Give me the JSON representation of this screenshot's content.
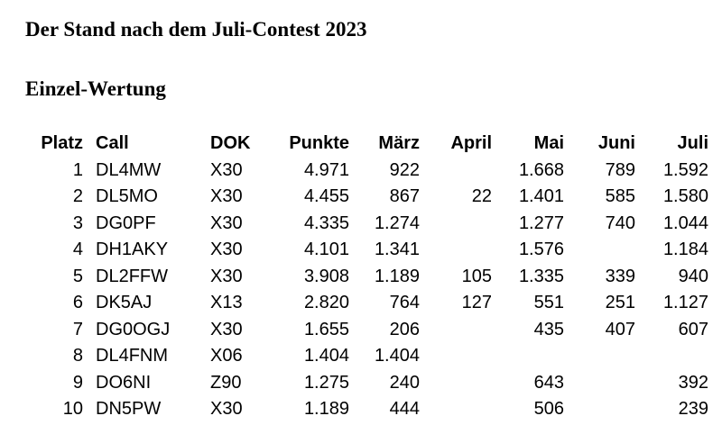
{
  "title": "Der Stand nach dem Juli-Contest 2023",
  "subtitle": "Einzel-Wertung",
  "columns": {
    "platz": "Platz",
    "call": "Call",
    "dok": "DOK",
    "punkte": "Punkte",
    "maerz": "März",
    "april": "April",
    "mai": "Mai",
    "juni": "Juni",
    "juli": "Juli"
  },
  "rows": [
    {
      "platz": "1",
      "call": "DL4MW",
      "dok": "X30",
      "punkte": "4.971",
      "maerz": "922",
      "april": "",
      "mai": "1.668",
      "juni": "789",
      "juli": "1.592"
    },
    {
      "platz": "2",
      "call": "DL5MO",
      "dok": "X30",
      "punkte": "4.455",
      "maerz": "867",
      "april": "22",
      "mai": "1.401",
      "juni": "585",
      "juli": "1.580"
    },
    {
      "platz": "3",
      "call": "DG0PF",
      "dok": "X30",
      "punkte": "4.335",
      "maerz": "1.274",
      "april": "",
      "mai": "1.277",
      "juni": "740",
      "juli": "1.044"
    },
    {
      "platz": "4",
      "call": "DH1AKY",
      "dok": "X30",
      "punkte": "4.101",
      "maerz": "1.341",
      "april": "",
      "mai": "1.576",
      "juni": "",
      "juli": "1.184"
    },
    {
      "platz": "5",
      "call": "DL2FFW",
      "dok": "X30",
      "punkte": "3.908",
      "maerz": "1.189",
      "april": "105",
      "mai": "1.335",
      "juni": "339",
      "juli": "940"
    },
    {
      "platz": "6",
      "call": "DK5AJ",
      "dok": "X13",
      "punkte": "2.820",
      "maerz": "764",
      "april": "127",
      "mai": "551",
      "juni": "251",
      "juli": "1.127"
    },
    {
      "platz": "7",
      "call": "DG0OGJ",
      "dok": "X30",
      "punkte": "1.655",
      "maerz": "206",
      "april": "",
      "mai": "435",
      "juni": "407",
      "juli": "607"
    },
    {
      "platz": "8",
      "call": "DL4FNM",
      "dok": "X06",
      "punkte": "1.404",
      "maerz": "1.404",
      "april": "",
      "mai": "",
      "juni": "",
      "juli": ""
    },
    {
      "platz": "9",
      "call": "DO6NI",
      "dok": "Z90",
      "punkte": "1.275",
      "maerz": "240",
      "april": "",
      "mai": "643",
      "juni": "",
      "juli": "392"
    },
    {
      "platz": "10",
      "call": "DN5PW",
      "dok": "X30",
      "punkte": "1.189",
      "maerz": "444",
      "april": "",
      "mai": "506",
      "juni": "",
      "juli": "239"
    }
  ]
}
